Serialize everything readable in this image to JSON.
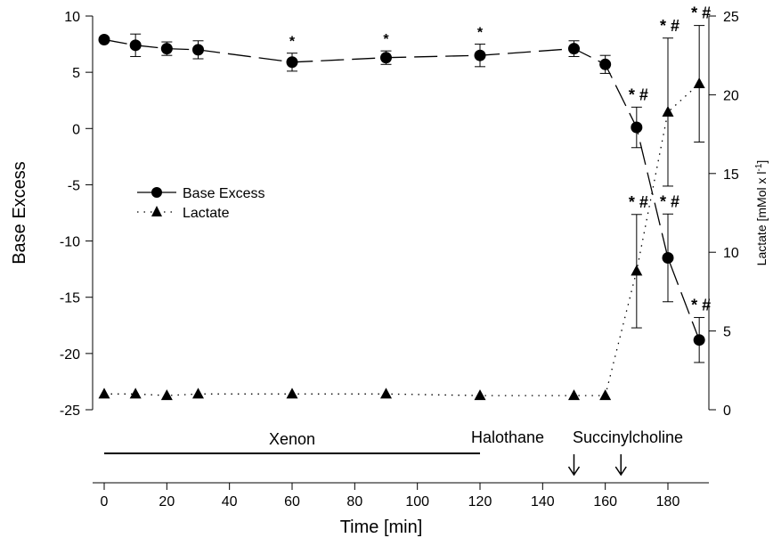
{
  "chart_data": {
    "type": "line",
    "x_axis": {
      "label": "Time [min]",
      "range": [
        0,
        195
      ],
      "ticks": [
        0,
        20,
        40,
        60,
        80,
        100,
        120,
        140,
        160,
        180
      ]
    },
    "y_left": {
      "label": "Base Excess",
      "range": [
        -25,
        10
      ],
      "ticks": [
        10,
        5,
        0,
        -5,
        -10,
        -15,
        -20,
        -25
      ]
    },
    "y_right": {
      "label": "Lactate [mMol x l",
      "label_sup": "-1",
      "label_close": "]",
      "range": [
        0,
        25
      ],
      "ticks": [
        25,
        20,
        15,
        10,
        5,
        0
      ]
    },
    "legend": {
      "position": "middle-left",
      "items": [
        "Base Excess",
        "Lactate"
      ]
    },
    "series": [
      {
        "name": "Base Excess",
        "axis": "left",
        "marker": "circle",
        "line": "dashed",
        "x": [
          0,
          10,
          20,
          30,
          60,
          90,
          120,
          150,
          160,
          170,
          180,
          190
        ],
        "y": [
          7.9,
          7.4,
          7.1,
          7.0,
          5.9,
          6.3,
          6.5,
          7.1,
          5.7,
          0.1,
          -11.5,
          -18.8
        ],
        "err": [
          0,
          1.0,
          0.6,
          0.8,
          0.8,
          0.6,
          1.0,
          0.7,
          0.8,
          1.8,
          3.9,
          2.0
        ],
        "annotations": [
          "",
          "",
          "",
          "",
          "*",
          "*",
          "*",
          "",
          "",
          "* #",
          "* #",
          "* #"
        ]
      },
      {
        "name": "Lactate",
        "axis": "right",
        "marker": "triangle",
        "line": "dotted",
        "x": [
          0,
          10,
          20,
          30,
          60,
          90,
          120,
          150,
          160,
          170,
          180,
          190
        ],
        "y": [
          1.0,
          1.0,
          0.9,
          1.0,
          1.0,
          1.0,
          0.9,
          0.9,
          0.9,
          8.8,
          18.9,
          20.7
        ],
        "err": [
          0,
          0,
          0,
          0,
          0,
          0,
          0,
          0,
          0,
          3.6,
          4.7,
          3.7
        ],
        "annotations": [
          "",
          "",
          "",
          "",
          "",
          "",
          "",
          "",
          "",
          "* #",
          "* #",
          "* #"
        ]
      }
    ],
    "phases": [
      {
        "label": "Xenon",
        "type": "bar",
        "start": 0,
        "end": 120
      },
      {
        "label": "Halothane",
        "type": "arrow",
        "at": 150
      },
      {
        "label": "Succinylcholine",
        "type": "arrow",
        "at": 165
      }
    ]
  }
}
